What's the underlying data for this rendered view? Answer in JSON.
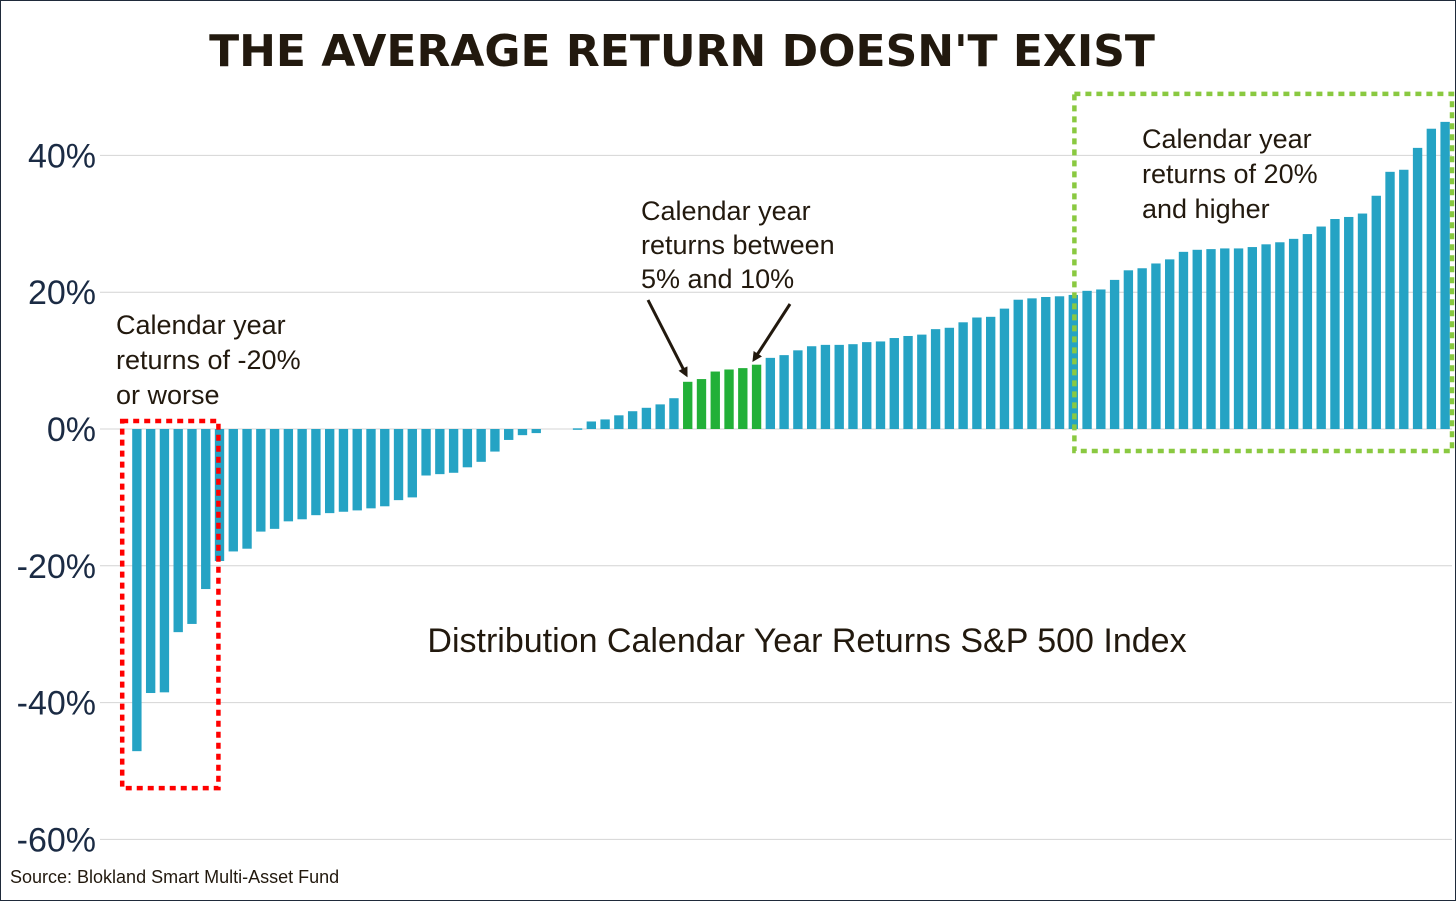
{
  "chart_data": {
    "type": "bar",
    "title": "THE AVERAGE RETURN DOESN'T EXIST",
    "subtitle": "Distribution Calendar Year Returns S&P 500 Index",
    "source": "Source: Blokland Smart Multi-Asset Fund",
    "ylabel": "",
    "xlabel": "",
    "ylim": [
      -60,
      48
    ],
    "yticks": [
      40,
      20,
      0,
      -20,
      -40,
      -60
    ],
    "ytick_labels": [
      "40%",
      "20%",
      "0%",
      "-20%",
      "-40%",
      "-60%"
    ],
    "grid": true,
    "colors": {
      "default": "#25a3c4",
      "highlight": "#22b038",
      "negative_box": "#ff0000",
      "positive_box": "#8ac941",
      "arrow": "#22190e"
    },
    "values": [
      -47.1,
      -38.6,
      -38.5,
      -29.7,
      -28.5,
      -23.4,
      -19.3,
      -17.9,
      -17.5,
      -15.0,
      -14.6,
      -13.5,
      -13.2,
      -12.6,
      -12.3,
      -12.1,
      -11.9,
      -11.6,
      -11.3,
      -10.4,
      -10.0,
      -6.8,
      -6.6,
      -6.4,
      -5.6,
      -4.8,
      -3.3,
      -1.6,
      -0.9,
      -0.6,
      0,
      0,
      0.1,
      1.1,
      1.4,
      2.0,
      2.6,
      3.1,
      3.6,
      4.5,
      6.9,
      7.3,
      8.4,
      8.7,
      8.9,
      9.4,
      10.4,
      10.8,
      11.5,
      12.1,
      12.3,
      12.3,
      12.4,
      12.7,
      12.8,
      13.3,
      13.6,
      13.8,
      14.6,
      14.8,
      15.6,
      16.3,
      16.4,
      17.6,
      18.9,
      19.1,
      19.3,
      19.4,
      19.6,
      20.2,
      20.4,
      21.8,
      23.2,
      23.5,
      24.2,
      24.8,
      25.9,
      26.2,
      26.3,
      26.4,
      26.4,
      26.6,
      27.0,
      27.3,
      27.8,
      28.5,
      29.6,
      30.7,
      31.0,
      31.5,
      34.1,
      37.6,
      37.9,
      41.1,
      43.9,
      44.9
    ],
    "highlight_indices": [
      40,
      41,
      42,
      43,
      44,
      45
    ],
    "annotations": [
      {
        "id": "negative",
        "lines": [
          "Calendar year",
          "returns of -20%",
          "or worse"
        ],
        "box_from_value": -47,
        "range_indices": [
          0,
          5
        ]
      },
      {
        "id": "middle",
        "lines": [
          "Calendar year",
          "returns between",
          "5% and 10%"
        ],
        "range_indices": [
          40,
          45
        ]
      },
      {
        "id": "positive",
        "lines": [
          "Calendar year",
          "returns of 20%",
          "and higher"
        ],
        "range_indices": [
          69,
          95
        ]
      }
    ]
  }
}
